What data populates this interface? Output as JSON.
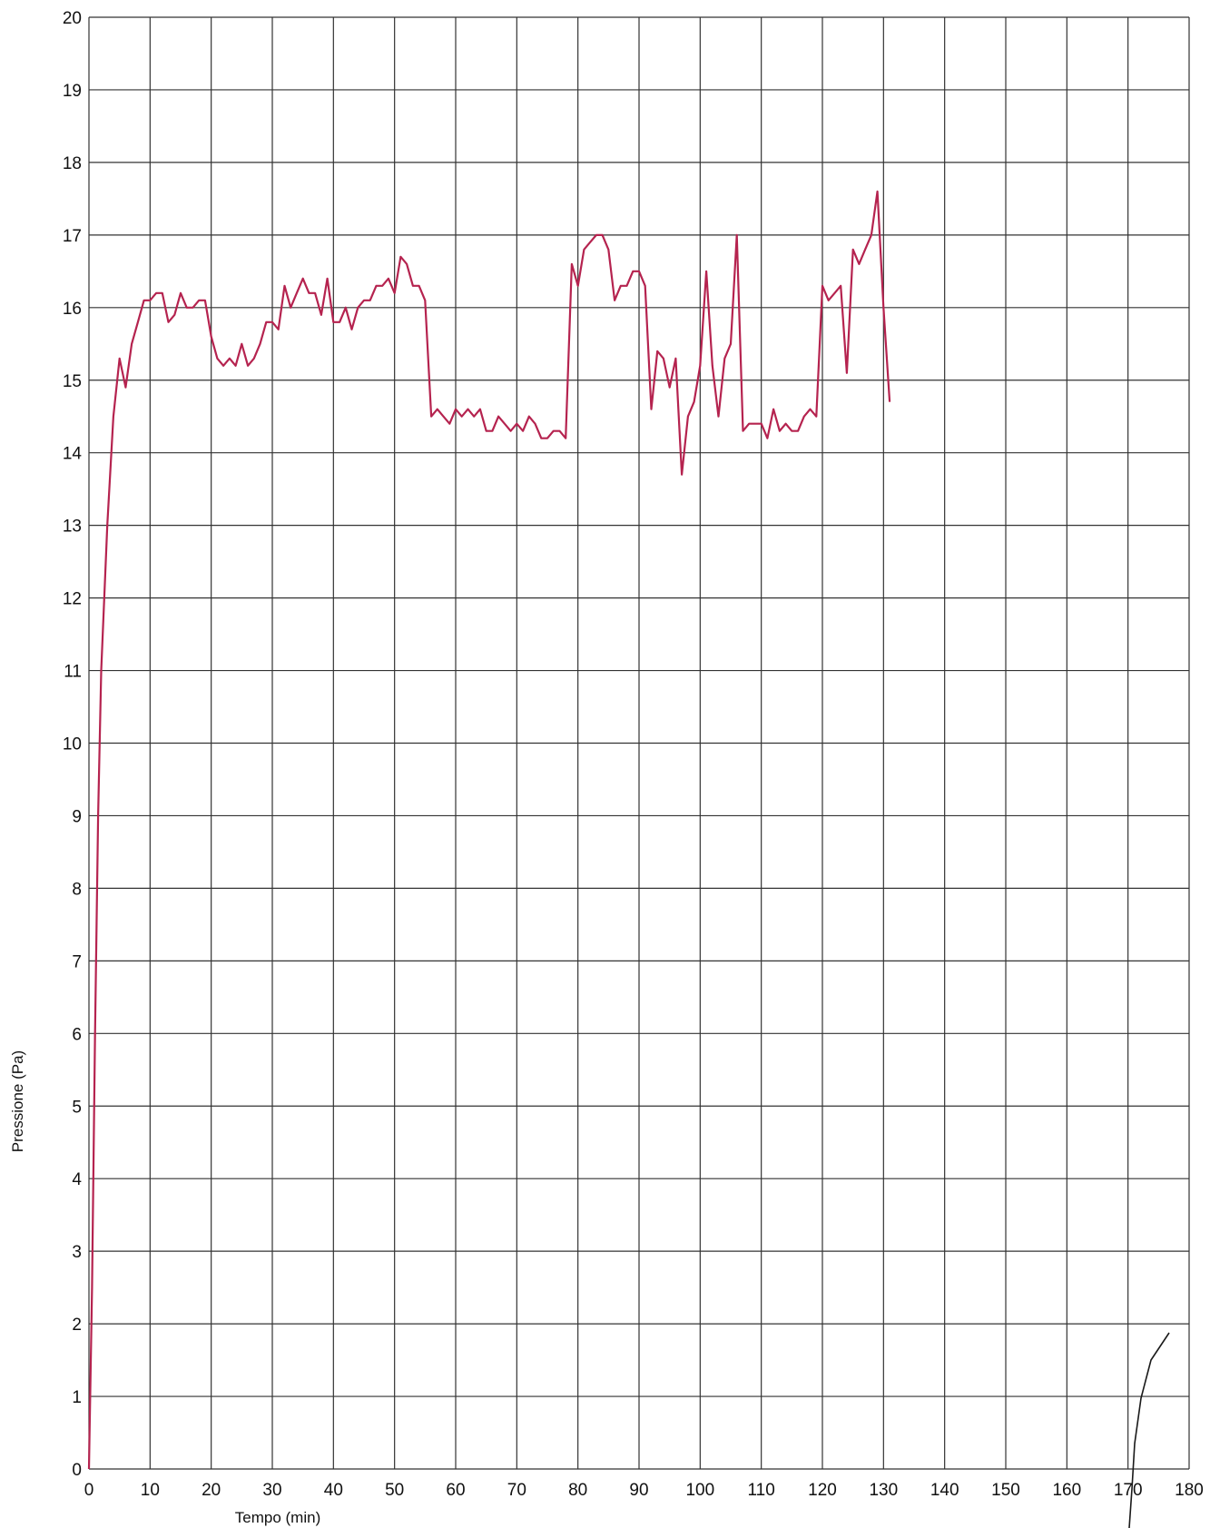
{
  "chart_data": {
    "type": "line",
    "title": "",
    "xlabel": "Tempo (min)",
    "ylabel": "Pressione (Pa)",
    "xlim": [
      0,
      180
    ],
    "ylim": [
      0,
      20
    ],
    "x_ticks": [
      "0",
      "10",
      "20",
      "30",
      "40",
      "50",
      "60",
      "70",
      "80",
      "90",
      "100",
      "110",
      "120",
      "130",
      "140",
      "150",
      "160",
      "170",
      "180"
    ],
    "y_ticks": [
      "0",
      "1",
      "2",
      "3",
      "4",
      "5",
      "6",
      "7",
      "8",
      "9",
      "10",
      "11",
      "12",
      "13",
      "14",
      "15",
      "16",
      "17",
      "18",
      "19",
      "20"
    ],
    "grid": true,
    "line_color": "#b5234f",
    "grid_color": "#333333",
    "series": [
      {
        "x": [
          0,
          0.5,
          1,
          1.5,
          2,
          3,
          4,
          5,
          6,
          7,
          8,
          9,
          10,
          11,
          12,
          13,
          14,
          15,
          16,
          17,
          18,
          19,
          20,
          21,
          22,
          23,
          24,
          25,
          26,
          27,
          28,
          29,
          30,
          31,
          32,
          33,
          34,
          35,
          36,
          37,
          38,
          39,
          40,
          41,
          42,
          43,
          44,
          45,
          46,
          47,
          48,
          49,
          50,
          51,
          52,
          53,
          54,
          55,
          56,
          57,
          58,
          59,
          60,
          61,
          62,
          63,
          64,
          65,
          66,
          67,
          68,
          69,
          70,
          71,
          72,
          73,
          74,
          75,
          76,
          77,
          78,
          79,
          80,
          81,
          82,
          83,
          84,
          85,
          86,
          87,
          88,
          89,
          90,
          91,
          92,
          93,
          94,
          95,
          96,
          97,
          98,
          99,
          100,
          101,
          102,
          103,
          104,
          105,
          106,
          107,
          108,
          109,
          110,
          111,
          112,
          113,
          114,
          115,
          116,
          117,
          118,
          119,
          120,
          121,
          122,
          123,
          124,
          125,
          126,
          127,
          128,
          129,
          130,
          131
        ],
        "y": [
          0,
          2.5,
          6,
          9,
          11,
          13,
          14.5,
          15.3,
          14.9,
          15.5,
          15.8,
          16.1,
          16.1,
          16.2,
          16.2,
          15.8,
          15.9,
          16.2,
          16.0,
          16.0,
          16.1,
          16.1,
          15.6,
          15.3,
          15.2,
          15.3,
          15.2,
          15.5,
          15.2,
          15.3,
          15.5,
          15.8,
          15.8,
          15.7,
          16.3,
          16.0,
          16.2,
          16.4,
          16.2,
          16.2,
          15.9,
          16.4,
          15.8,
          15.8,
          16.0,
          15.7,
          16.0,
          16.1,
          16.1,
          16.3,
          16.3,
          16.4,
          16.2,
          16.7,
          16.6,
          16.3,
          16.3,
          16.1,
          14.5,
          14.6,
          14.5,
          14.4,
          14.6,
          14.5,
          14.6,
          14.5,
          14.6,
          14.3,
          14.3,
          14.5,
          14.4,
          14.3,
          14.4,
          14.3,
          14.5,
          14.4,
          14.2,
          14.2,
          14.3,
          14.3,
          14.2,
          16.6,
          16.3,
          16.8,
          16.9,
          17.0,
          17.0,
          16.8,
          16.1,
          16.3,
          16.3,
          16.5,
          16.5,
          16.3,
          14.6,
          15.4,
          15.3,
          14.9,
          15.3,
          13.7,
          14.5,
          14.7,
          15.2,
          16.5,
          15.2,
          14.5,
          15.3,
          15.5,
          17.0,
          14.3,
          14.4,
          14.4,
          14.4,
          14.2,
          14.6,
          14.3,
          14.4,
          14.3,
          14.3,
          14.5,
          14.6,
          14.5,
          16.3,
          16.1,
          16.2,
          16.3,
          15.1,
          16.8,
          16.6,
          16.8,
          17.0,
          17.6,
          16.0,
          14.7
        ]
      }
    ]
  }
}
